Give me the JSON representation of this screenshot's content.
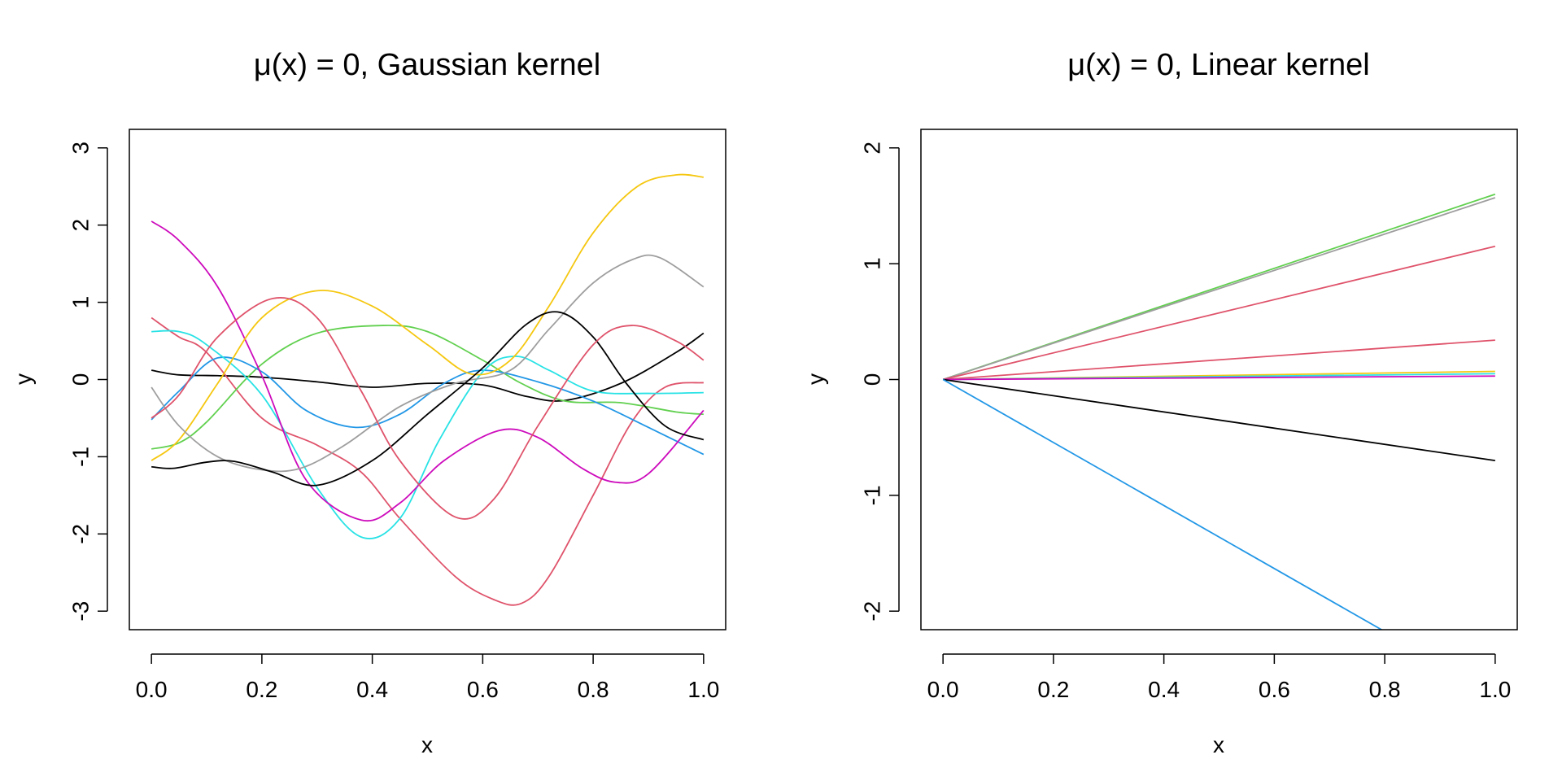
{
  "chart_data": [
    {
      "type": "line",
      "title": "μ(x) = 0, Gaussian kernel",
      "xlabel": "x",
      "ylabel": "y",
      "xlim": [
        -0.04,
        1.04
      ],
      "ylim": [
        -3.24,
        3.24
      ],
      "xticks": [
        0.0,
        0.2,
        0.4,
        0.6,
        0.8,
        1.0
      ],
      "xtick_labels": [
        "0.0",
        "0.2",
        "0.4",
        "0.6",
        "0.8",
        "1.0"
      ],
      "yticks": [
        -3,
        -2,
        -1,
        0,
        1,
        2,
        3
      ],
      "ytick_labels": [
        "-3",
        "-2",
        "-1",
        "0",
        "1",
        "2",
        "3"
      ],
      "grid": false,
      "legend": "none",
      "series": [
        {
          "color": "#000000",
          "x": [
            0,
            0.05,
            0.12,
            0.2,
            0.3,
            0.4,
            0.5,
            0.6,
            0.68,
            0.75,
            0.85,
            0.95,
            1.0
          ],
          "y": [
            0.12,
            0.06,
            0.05,
            0.03,
            -0.03,
            -0.1,
            -0.05,
            -0.07,
            -0.22,
            -0.27,
            -0.05,
            0.35,
            0.6
          ]
        },
        {
          "color": "#DF536B",
          "x": [
            0,
            0.05,
            0.1,
            0.2,
            0.3,
            0.38,
            0.45,
            0.55,
            0.62,
            0.67,
            0.72,
            0.8,
            0.87,
            0.93,
            1.0
          ],
          "y": [
            0.8,
            0.55,
            0.35,
            -0.5,
            -0.85,
            -1.2,
            -1.8,
            -2.55,
            -2.85,
            -2.9,
            -2.55,
            -1.5,
            -0.55,
            -0.1,
            -0.04
          ]
        },
        {
          "color": "#61D04F",
          "x": [
            0,
            0.05,
            0.1,
            0.2,
            0.3,
            0.42,
            0.5,
            0.6,
            0.67,
            0.75,
            0.85,
            0.95,
            1.0
          ],
          "y": [
            -0.9,
            -0.82,
            -0.55,
            0.2,
            0.6,
            0.7,
            0.62,
            0.25,
            -0.05,
            -0.28,
            -0.3,
            -0.42,
            -0.45
          ]
        },
        {
          "color": "#2297E6",
          "x": [
            0,
            0.05,
            0.12,
            0.2,
            0.28,
            0.37,
            0.45,
            0.53,
            0.6,
            0.7,
            0.8,
            0.9,
            1.0
          ],
          "y": [
            -0.52,
            -0.15,
            0.28,
            0.1,
            -0.4,
            -0.62,
            -0.45,
            -0.05,
            0.12,
            -0.03,
            -0.28,
            -0.62,
            -0.97
          ]
        },
        {
          "color": "#28E2E5",
          "x": [
            0,
            0.05,
            0.1,
            0.2,
            0.3,
            0.38,
            0.45,
            0.52,
            0.6,
            0.66,
            0.72,
            0.8,
            0.9,
            1.0
          ],
          "y": [
            0.62,
            0.62,
            0.45,
            -0.2,
            -1.4,
            -2.04,
            -1.8,
            -0.8,
            0.1,
            0.3,
            0.12,
            -0.15,
            -0.18,
            -0.17
          ]
        },
        {
          "color": "#CD0BBC",
          "x": [
            0,
            0.05,
            0.12,
            0.2,
            0.28,
            0.38,
            0.45,
            0.53,
            0.63,
            0.7,
            0.78,
            0.84,
            0.9,
            1.0
          ],
          "y": [
            2.05,
            1.8,
            1.2,
            0.05,
            -1.3,
            -1.82,
            -1.6,
            -1.05,
            -0.66,
            -0.75,
            -1.15,
            -1.33,
            -1.22,
            -0.4
          ]
        },
        {
          "color": "#F5C710",
          "x": [
            0,
            0.05,
            0.12,
            0.2,
            0.3,
            0.4,
            0.5,
            0.58,
            0.65,
            0.72,
            0.8,
            0.88,
            0.95,
            1.0
          ],
          "y": [
            -1.05,
            -0.78,
            -0.05,
            0.8,
            1.15,
            0.95,
            0.45,
            0.07,
            0.25,
            0.95,
            1.9,
            2.5,
            2.65,
            2.62
          ]
        },
        {
          "color": "#9E9E9E",
          "x": [
            0,
            0.05,
            0.12,
            0.2,
            0.27,
            0.35,
            0.45,
            0.55,
            0.65,
            0.72,
            0.8,
            0.87,
            0.92,
            1.0
          ],
          "y": [
            -0.1,
            -0.6,
            -1.0,
            -1.17,
            -1.15,
            -0.85,
            -0.35,
            -0.05,
            0.12,
            0.65,
            1.25,
            1.55,
            1.58,
            1.2
          ]
        },
        {
          "color": "#000000",
          "x": [
            0,
            0.04,
            0.1,
            0.15,
            0.22,
            0.3,
            0.4,
            0.5,
            0.6,
            0.68,
            0.74,
            0.8,
            0.86,
            0.93,
            1.0
          ],
          "y": [
            -1.13,
            -1.15,
            -1.07,
            -1.06,
            -1.2,
            -1.37,
            -1.05,
            -0.45,
            0.15,
            0.72,
            0.87,
            0.55,
            -0.05,
            -0.6,
            -0.78
          ]
        },
        {
          "color": "#DF536B",
          "x": [
            0,
            0.05,
            0.12,
            0.22,
            0.3,
            0.38,
            0.45,
            0.55,
            0.62,
            0.7,
            0.8,
            0.87,
            0.95,
            1.0
          ],
          "y": [
            -0.5,
            -0.2,
            0.55,
            1.05,
            0.8,
            -0.15,
            -1.05,
            -1.78,
            -1.55,
            -0.6,
            0.45,
            0.7,
            0.5,
            0.25
          ]
        }
      ]
    },
    {
      "type": "line",
      "title": "μ(x) = 0, Linear kernel",
      "xlabel": "x",
      "ylabel": "y",
      "xlim": [
        -0.04,
        1.04
      ],
      "ylim": [
        -2.16,
        2.16
      ],
      "xticks": [
        0.0,
        0.2,
        0.4,
        0.6,
        0.8,
        1.0
      ],
      "xtick_labels": [
        "0.0",
        "0.2",
        "0.4",
        "0.6",
        "0.8",
        "1.0"
      ],
      "yticks": [
        -2,
        -1,
        0,
        1,
        2
      ],
      "ytick_labels": [
        "-2",
        "-1",
        "0",
        "1",
        "2"
      ],
      "grid": false,
      "legend": "none",
      "series": [
        {
          "color": "#61D04F",
          "x": [
            0,
            1
          ],
          "y": [
            0,
            1.6
          ]
        },
        {
          "color": "#9E9E9E",
          "x": [
            0,
            1
          ],
          "y": [
            0,
            1.57
          ]
        },
        {
          "color": "#DF536B",
          "x": [
            0,
            1
          ],
          "y": [
            0,
            1.15
          ]
        },
        {
          "color": "#DF536B",
          "x": [
            0,
            1
          ],
          "y": [
            0,
            0.34
          ]
        },
        {
          "color": "#F5C710",
          "x": [
            0,
            1
          ],
          "y": [
            0,
            0.07
          ]
        },
        {
          "color": "#28E2E5",
          "x": [
            0,
            1
          ],
          "y": [
            0,
            0.05
          ]
        },
        {
          "color": "#CD0BBC",
          "x": [
            0,
            1
          ],
          "y": [
            0,
            0.03
          ]
        },
        {
          "color": "#000000",
          "x": [
            0,
            1
          ],
          "y": [
            0,
            -0.7
          ]
        },
        {
          "color": "#2297E6",
          "x": [
            0,
            1
          ],
          "y": [
            0,
            -2.72
          ]
        }
      ]
    }
  ]
}
